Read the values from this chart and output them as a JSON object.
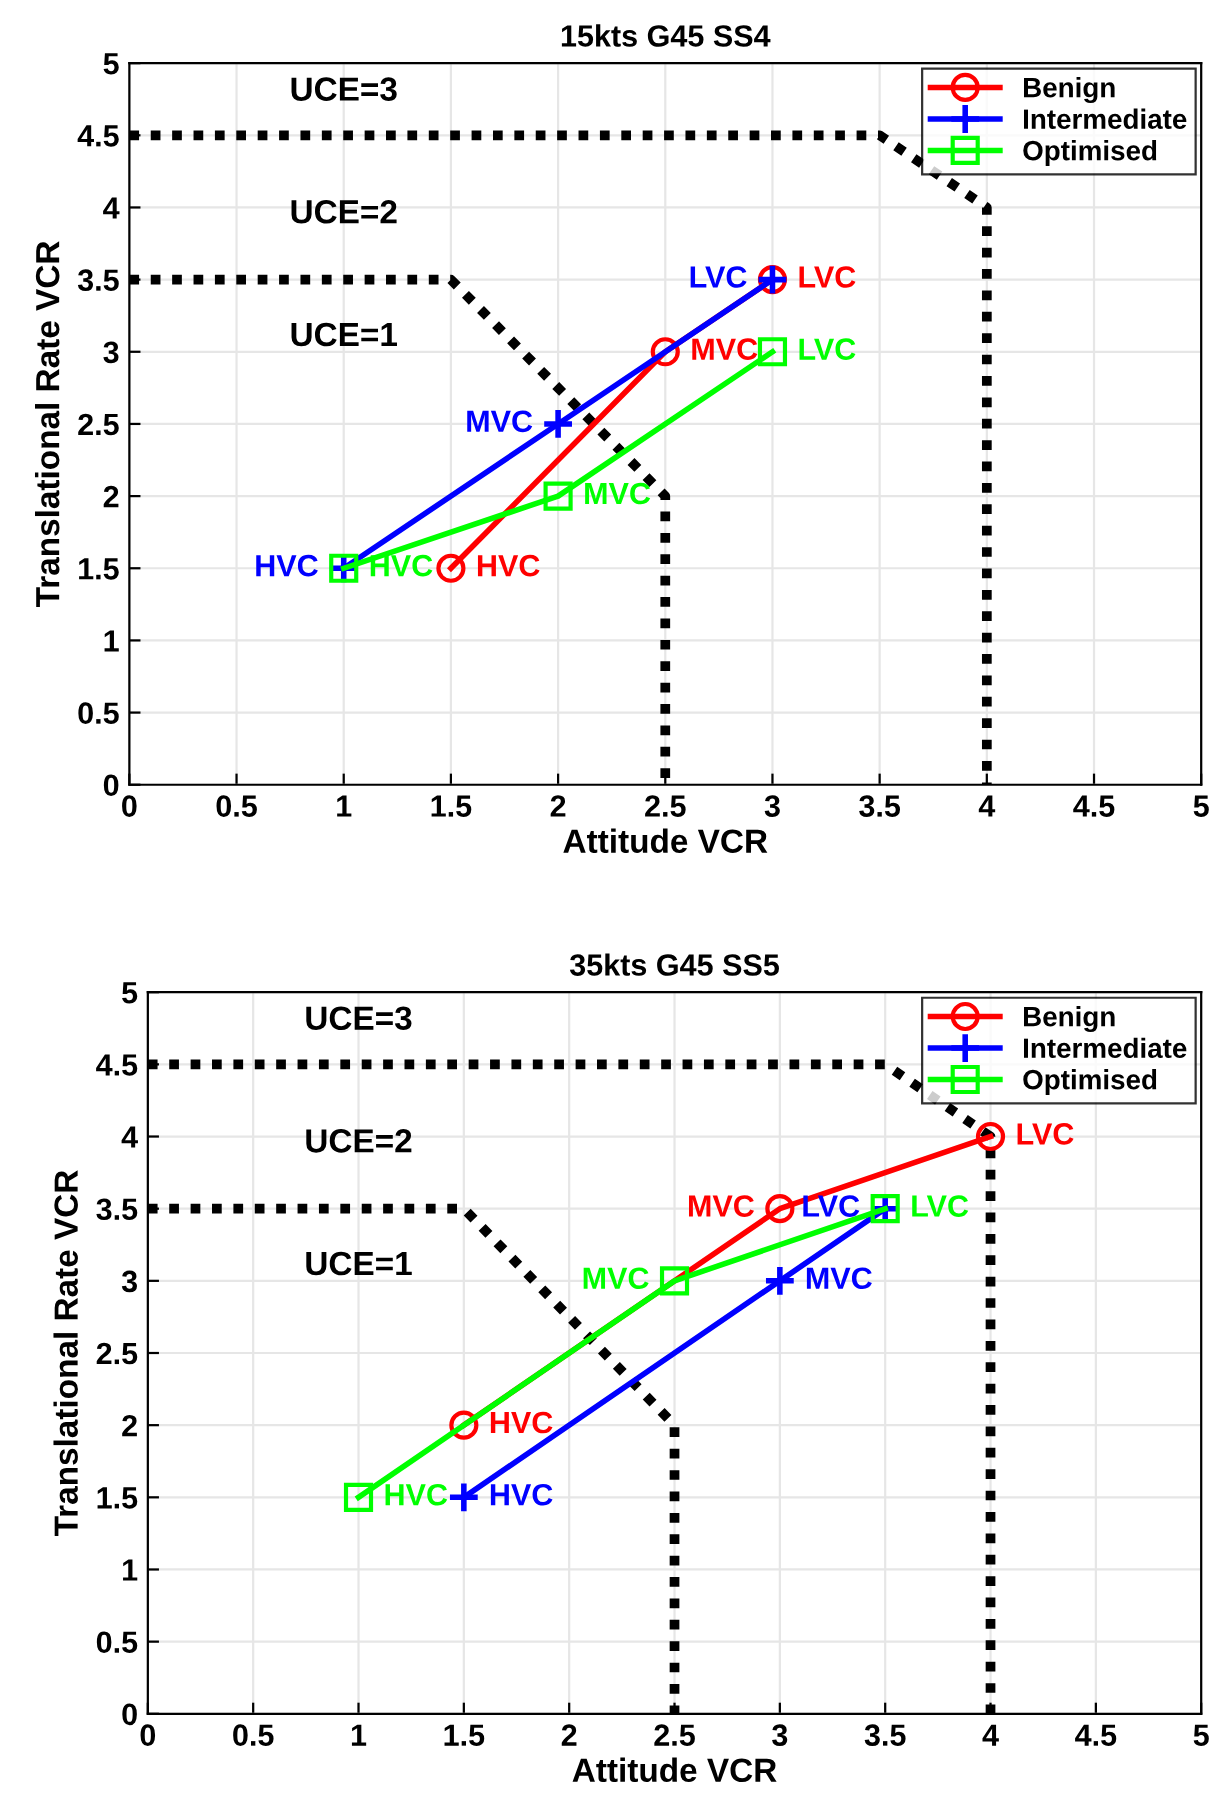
{
  "chart_data": [
    {
      "type": "line",
      "title": "15kts G45 SS4",
      "xlabel": "Attitude VCR",
      "ylabel": "Translational Rate VCR",
      "xlim": [
        0,
        5
      ],
      "ylim": [
        0,
        5
      ],
      "xticks": [
        0,
        0.5,
        1,
        1.5,
        2,
        2.5,
        3,
        3.5,
        4,
        4.5,
        5
      ],
      "yticks": [
        0,
        0.5,
        1,
        1.5,
        2,
        2.5,
        3,
        3.5,
        4,
        4.5,
        5
      ],
      "grid": true,
      "legend": "top right",
      "series": [
        {
          "x": [
            0,
            1.5,
            2.5,
            2.5
          ],
          "values": [
            3.5,
            3.5,
            2,
            0
          ],
          "color": "#000000",
          "line_style": "dotted",
          "marker": "none"
        },
        {
          "x": [
            0,
            3.5,
            4,
            4
          ],
          "values": [
            4.5,
            4.5,
            4,
            0
          ],
          "color": "#000000",
          "line_style": "dotted",
          "marker": "none"
        },
        {
          "name": "Benign",
          "x": [
            1.5,
            2.5,
            3
          ],
          "values": [
            1.5,
            3,
            3.5
          ],
          "color": "#ff0000",
          "marker": "circle",
          "line_style": "solid",
          "value_labels": [
            "HVC",
            "MVC",
            "LVC"
          ]
        },
        {
          "name": "Intermediate",
          "x": [
            1,
            2,
            3
          ],
          "values": [
            1.5,
            2.5,
            3.5
          ],
          "color": "#0000ff",
          "marker": "cross",
          "line_style": "solid",
          "value_labels": [
            "HVC",
            "MVC",
            "LVC"
          ]
        },
        {
          "name": "Optimised",
          "x": [
            1,
            2,
            3
          ],
          "values": [
            1.5,
            2,
            3
          ],
          "color": "#00ff00",
          "marker": "square",
          "line_style": "solid",
          "value_labels": [
            "HVC",
            "MVC",
            "LVC"
          ]
        }
      ],
      "annotations": [
        "UCE=3",
        "UCE=2",
        "UCE=1"
      ]
    },
    {
      "type": "line",
      "title": "35kts G45 SS5",
      "xlabel": "Attitude VCR",
      "ylabel": "Translational Rate VCR",
      "xlim": [
        0,
        5
      ],
      "ylim": [
        0,
        5
      ],
      "xticks": [
        0,
        0.5,
        1,
        1.5,
        2,
        2.5,
        3,
        3.5,
        4,
        4.5,
        5
      ],
      "yticks": [
        0,
        0.5,
        1,
        1.5,
        2,
        2.5,
        3,
        3.5,
        4,
        4.5,
        5
      ],
      "grid": true,
      "legend": "top right",
      "series": [
        {
          "x": [
            0,
            1.5,
            2.5,
            2.5
          ],
          "values": [
            3.5,
            3.5,
            2,
            0
          ],
          "color": "#000000",
          "line_style": "dotted",
          "marker": "none"
        },
        {
          "x": [
            0,
            3.5,
            4,
            4
          ],
          "values": [
            4.5,
            4.5,
            4,
            0
          ],
          "color": "#000000",
          "line_style": "dotted",
          "marker": "none"
        },
        {
          "name": "Benign",
          "x": [
            1.5,
            3,
            4
          ],
          "values": [
            2,
            3.5,
            4
          ],
          "color": "#ff0000",
          "marker": "circle",
          "line_style": "solid",
          "value_labels": [
            "HVC",
            "MVC",
            "LVC"
          ]
        },
        {
          "name": "Intermediate",
          "x": [
            1.5,
            3,
            3.5
          ],
          "values": [
            1.5,
            3,
            3.5
          ],
          "color": "#0000ff",
          "marker": "cross",
          "line_style": "solid",
          "value_labels": [
            "HVC",
            "MVC",
            "LVC"
          ]
        },
        {
          "name": "Optimised",
          "x": [
            1,
            2.5,
            3.5
          ],
          "values": [
            1.5,
            3,
            3.5
          ],
          "color": "#00ff00",
          "marker": "square",
          "line_style": "solid",
          "value_labels": [
            "HVC",
            "MVC",
            "LVC"
          ]
        }
      ],
      "annotations": [
        "UCE=3",
        "UCE=2",
        "UCE=1"
      ]
    }
  ]
}
